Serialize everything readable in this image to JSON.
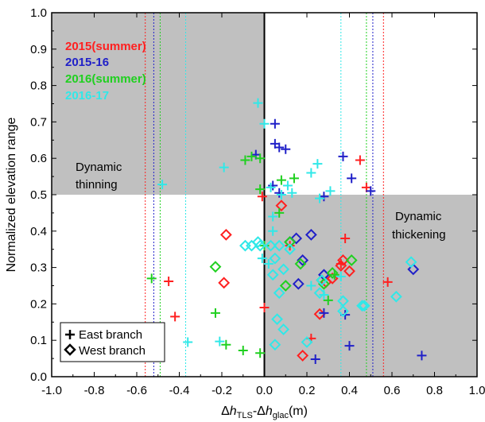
{
  "chart_data": {
    "type": "scatter",
    "xlim": [
      -1.0,
      1.0
    ],
    "ylim": [
      0.0,
      1.0
    ],
    "x_ticks": [
      "-1.0",
      "-0.8",
      "-0.6",
      "-0.4",
      "-0.2",
      "0.0",
      "0.2",
      "0.4",
      "0.6",
      "0.8",
      "1.0"
    ],
    "y_ticks": [
      "0.0",
      "0.1",
      "0.2",
      "0.3",
      "0.4",
      "0.5",
      "0.6",
      "0.7",
      "0.8",
      "0.9",
      "1.0"
    ],
    "ylabel": "Normalized elevation range",
    "xlabel_parts": {
      "delta1": "Δ",
      "h1": "h",
      "sub1": "TLS",
      "mid": "-Δ",
      "h2": "h",
      "sub2": "glac",
      "unit": "(m)"
    },
    "regions": [
      {
        "name": "Dynamic thinning",
        "line1": "Dynamic",
        "line2": "thinning",
        "x": [
          -1.0,
          0.0
        ],
        "y": [
          0.5,
          1.0
        ],
        "color": "#c0c0c0"
      },
      {
        "name": "Dynamic thickening",
        "line1": "Dynamic",
        "line2": "thickening",
        "x": [
          0.0,
          1.0
        ],
        "y": [
          0.0,
          0.5
        ],
        "color": "#c0c0c0"
      }
    ],
    "periods": [
      {
        "name": "2015(summer)",
        "color": "#ff2020",
        "vlines": [
          -0.56,
          0.56
        ]
      },
      {
        "name": "2015-16",
        "color": "#2020c8",
        "vlines": [
          -0.52,
          0.51
        ]
      },
      {
        "name": "2016(summer)",
        "color": "#20d020",
        "vlines": [
          -0.49,
          0.48
        ]
      },
      {
        "name": "2016-17",
        "color": "#30e8e8",
        "vlines": [
          -0.37,
          0.36
        ]
      }
    ],
    "legend": [
      {
        "label": "East branch",
        "marker": "plus"
      },
      {
        "label": "West branch",
        "marker": "diamond"
      }
    ],
    "series": [
      {
        "period": "2015(summer)",
        "branch": "east",
        "points": [
          [
            0.45,
            0.595
          ],
          [
            0.48,
            0.52
          ],
          [
            -0.01,
            0.495
          ],
          [
            0.38,
            0.38
          ],
          [
            0.58,
            0.26
          ],
          [
            -0.45,
            0.262
          ],
          [
            -0.42,
            0.165
          ],
          [
            0.22,
            0.105
          ],
          [
            0.0,
            0.19
          ],
          [
            0.12,
            0.36
          ],
          [
            0.36,
            0.31
          ]
        ]
      },
      {
        "period": "2015(summer)",
        "branch": "west",
        "points": [
          [
            -0.18,
            0.39
          ],
          [
            0.08,
            0.47
          ],
          [
            -0.19,
            0.258
          ],
          [
            0.26,
            0.172
          ],
          [
            0.18,
            0.058
          ],
          [
            0.29,
            0.26
          ],
          [
            0.32,
            0.27
          ],
          [
            0.37,
            0.32
          ],
          [
            0.36,
            0.305
          ],
          [
            0.4,
            0.29
          ]
        ]
      },
      {
        "period": "2015-16",
        "branch": "east",
        "points": [
          [
            -0.04,
            0.61
          ],
          [
            0.05,
            0.695
          ],
          [
            0.05,
            0.64
          ],
          [
            0.07,
            0.63
          ],
          [
            0.1,
            0.625
          ],
          [
            0.37,
            0.605
          ],
          [
            0.41,
            0.545
          ],
          [
            0.04,
            0.525
          ],
          [
            0.5,
            0.51
          ],
          [
            0.28,
            0.495
          ],
          [
            0.07,
            0.505
          ],
          [
            0.28,
            0.175
          ],
          [
            0.38,
            0.17
          ],
          [
            0.4,
            0.085
          ],
          [
            0.24,
            0.048
          ],
          [
            0.74,
            0.058
          ]
        ]
      },
      {
        "period": "2015-16",
        "branch": "west",
        "points": [
          [
            0.22,
            0.39
          ],
          [
            0.15,
            0.38
          ],
          [
            0.12,
            0.37
          ],
          [
            0.18,
            0.32
          ],
          [
            0.28,
            0.28
          ],
          [
            0.16,
            0.255
          ],
          [
            0.7,
            0.295
          ]
        ]
      },
      {
        "period": "2016(summer)",
        "branch": "east",
        "points": [
          [
            -0.09,
            0.595
          ],
          [
            -0.06,
            0.605
          ],
          [
            -0.02,
            0.6
          ],
          [
            0.08,
            0.54
          ],
          [
            0.14,
            0.545
          ],
          [
            -0.02,
            0.515
          ],
          [
            0.07,
            0.45
          ],
          [
            0.3,
            0.21
          ],
          [
            -0.53,
            0.27
          ],
          [
            -0.23,
            0.175
          ],
          [
            -0.18,
            0.088
          ],
          [
            -0.1,
            0.072
          ],
          [
            -0.02,
            0.065
          ],
          [
            0.0,
            0.36
          ],
          [
            0.33,
            0.28
          ]
        ]
      },
      {
        "period": "2016(summer)",
        "branch": "west",
        "points": [
          [
            -0.23,
            0.302
          ],
          [
            0.12,
            0.37
          ],
          [
            0.17,
            0.31
          ],
          [
            0.1,
            0.25
          ],
          [
            0.27,
            0.265
          ],
          [
            0.32,
            0.285
          ],
          [
            0.41,
            0.32
          ],
          [
            0.28,
            0.255
          ]
        ]
      },
      {
        "period": "2016-17",
        "branch": "east",
        "points": [
          [
            -0.03,
            0.752
          ],
          [
            0.0,
            0.695
          ],
          [
            0.25,
            0.585
          ],
          [
            -0.19,
            0.575
          ],
          [
            0.22,
            0.56
          ],
          [
            -0.48,
            0.528
          ],
          [
            0.11,
            0.525
          ],
          [
            0.03,
            0.52
          ],
          [
            0.31,
            0.51
          ],
          [
            0.13,
            0.505
          ],
          [
            0.08,
            0.5
          ],
          [
            0.26,
            0.49
          ],
          [
            0.04,
            0.44
          ],
          [
            0.04,
            0.4
          ],
          [
            -0.01,
            0.325
          ],
          [
            0.02,
            0.31
          ],
          [
            0.36,
            0.275
          ],
          [
            0.22,
            0.25
          ],
          [
            0.28,
            0.225
          ],
          [
            -0.36,
            0.095
          ],
          [
            -0.21,
            0.097
          ]
        ]
      },
      {
        "period": "2016-17",
        "branch": "west",
        "points": [
          [
            -0.03,
            0.37
          ],
          [
            -0.09,
            0.36
          ],
          [
            -0.06,
            0.36
          ],
          [
            -0.02,
            0.36
          ],
          [
            0.03,
            0.36
          ],
          [
            0.07,
            0.36
          ],
          [
            0.12,
            0.35
          ],
          [
            0.05,
            0.325
          ],
          [
            0.09,
            0.295
          ],
          [
            0.04,
            0.28
          ],
          [
            0.07,
            0.23
          ],
          [
            0.06,
            0.158
          ],
          [
            0.09,
            0.13
          ],
          [
            0.2,
            0.095
          ],
          [
            0.05,
            0.088
          ],
          [
            0.27,
            0.265
          ],
          [
            0.26,
            0.23
          ],
          [
            0.37,
            0.208
          ],
          [
            0.37,
            0.18
          ],
          [
            0.46,
            0.195
          ],
          [
            0.47,
            0.195
          ],
          [
            0.62,
            0.22
          ],
          [
            0.69,
            0.315
          ]
        ]
      }
    ]
  }
}
